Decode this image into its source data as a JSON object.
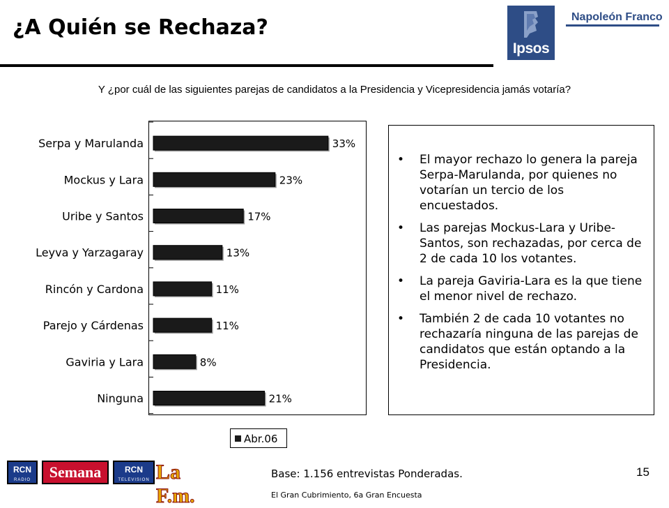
{
  "slide": {
    "title": "¿A Quién se Rechaza?",
    "question": "Y ¿por cuál de las siguientes parejas de candidatos a la Presidencia y Vicepresidencia jamás votaría?",
    "base": "Base: 1.156 entrevistas Ponderadas.",
    "source": "El Gran Cubrimiento, 6a Gran Encuesta",
    "page_number": "15"
  },
  "brand": {
    "ipsos": "Ipsos",
    "napoleon_franco": "Napoleón Franco",
    "color": "#2e4d86"
  },
  "footer_logos": {
    "rcn_radio": "RCN",
    "rcn_radio_sub": "RADIO",
    "semana": "Semana",
    "rcn_tv": "RCN",
    "rcn_tv_sub": "TELEVISION",
    "lafm": "La F.m."
  },
  "chart_data": {
    "type": "bar",
    "orientation": "horizontal",
    "categories": [
      "Serpa y Marulanda",
      "Mockus y Lara",
      "Uribe y Santos",
      "Leyva y Yarzagaray",
      "Rincón y Cardona",
      "Parejo y Cárdenas",
      "Gaviria y Lara",
      "Ninguna"
    ],
    "series": [
      {
        "name": "Abr.06",
        "values": [
          33,
          23,
          17,
          13,
          11,
          11,
          8,
          21
        ],
        "color": "#1a1a1a"
      }
    ],
    "data_labels": [
      "33%",
      "23%",
      "17%",
      "13%",
      "11%",
      "11%",
      "8%",
      "21%"
    ],
    "xlim": [
      0,
      35
    ],
    "legend_position": "bottom",
    "grid": false
  },
  "bullets": [
    "El mayor rechazo lo genera la pareja Serpa-Marulanda, por quienes no votarían un tercio de los encuestados.",
    "Las parejas Mockus-Lara y Uribe-Santos, son rechazadas, por cerca de 2 de cada 10 los votantes.",
    "La pareja Gaviria-Lara es la que tiene el menor nivel de rechazo.",
    "También 2 de cada 10 votantes no rechazaría ninguna de las parejas de candidatos que están optando a la Presidencia."
  ],
  "bullet_glyph": "•"
}
